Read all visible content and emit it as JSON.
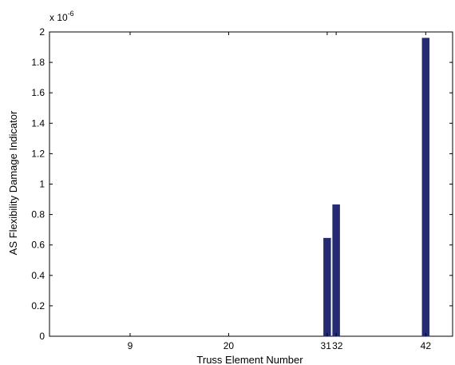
{
  "chart_data": {
    "type": "bar",
    "title": "",
    "xlabel": "Truss Element Number",
    "ylabel": "AS Flexibility Damage Indicator",
    "y_multiplier_label": "x 10",
    "y_multiplier_exponent": "-6",
    "xlim": [
      0,
      45
    ],
    "ylim": [
      0,
      2
    ],
    "x_ticks": [
      9,
      20,
      31,
      32,
      42
    ],
    "x_tick_labels": [
      "9",
      "20",
      "31",
      "32",
      "42"
    ],
    "y_ticks": [
      0,
      0.2,
      0.4,
      0.6,
      0.8,
      1,
      1.2,
      1.4,
      1.6,
      1.8,
      2
    ],
    "y_tick_labels": [
      "0",
      "0.2",
      "0.4",
      "0.6",
      "0.8",
      "1",
      "1.2",
      "1.4",
      "1.6",
      "1.8",
      "2"
    ],
    "bars": [
      {
        "x": 9,
        "value": 0.0
      },
      {
        "x": 20,
        "value": 0.0
      },
      {
        "x": 31,
        "value": 0.645
      },
      {
        "x": 32,
        "value": 0.865
      },
      {
        "x": 42,
        "value": 1.96
      }
    ],
    "bar_color": "#252b73",
    "grid": false
  }
}
